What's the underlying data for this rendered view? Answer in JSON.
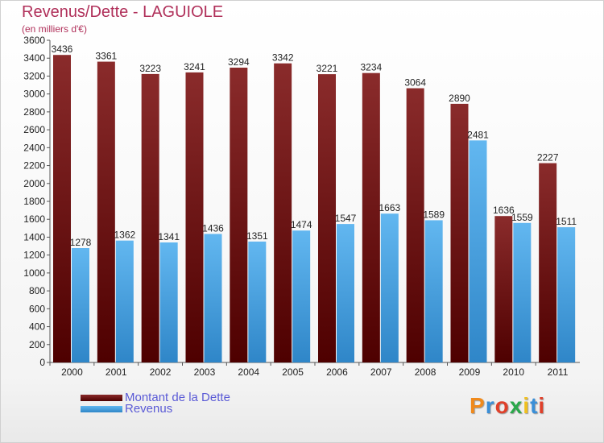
{
  "title": "Revenus/Dette - LAGUIOLE",
  "subtitle": "(en milliers d'€)",
  "colors": {
    "dette_top": "#8a2b2b",
    "dette_bottom": "#4e0000",
    "revenus_top": "#62b7f0",
    "revenus_bottom": "#2f86c8",
    "title": "#b0305a",
    "legend_text": "#5a5ad6"
  },
  "chart_data": {
    "type": "bar",
    "title": "Revenus/Dette - LAGUIOLE",
    "subtitle": "(en milliers d'€)",
    "categories": [
      "2000",
      "2001",
      "2002",
      "2003",
      "2004",
      "2005",
      "2006",
      "2007",
      "2008",
      "2009",
      "2010",
      "2011"
    ],
    "series": [
      {
        "name": "Montant de la Dette",
        "values": [
          3436,
          3361,
          3223,
          3241,
          3294,
          3342,
          3221,
          3234,
          3064,
          2890,
          1636,
          2227
        ]
      },
      {
        "name": "Revenus",
        "values": [
          1278,
          1362,
          1341,
          1436,
          1351,
          1474,
          1547,
          1663,
          1589,
          2481,
          1559,
          1511
        ]
      }
    ],
    "ylim": [
      0,
      3600
    ],
    "ytick_step": 200,
    "grid": false,
    "legend": "bottom-left"
  },
  "legend": {
    "dette_label": "Montant de la Dette",
    "revenus_label": "Revenus"
  },
  "logo": {
    "text": "Proxiti"
  }
}
